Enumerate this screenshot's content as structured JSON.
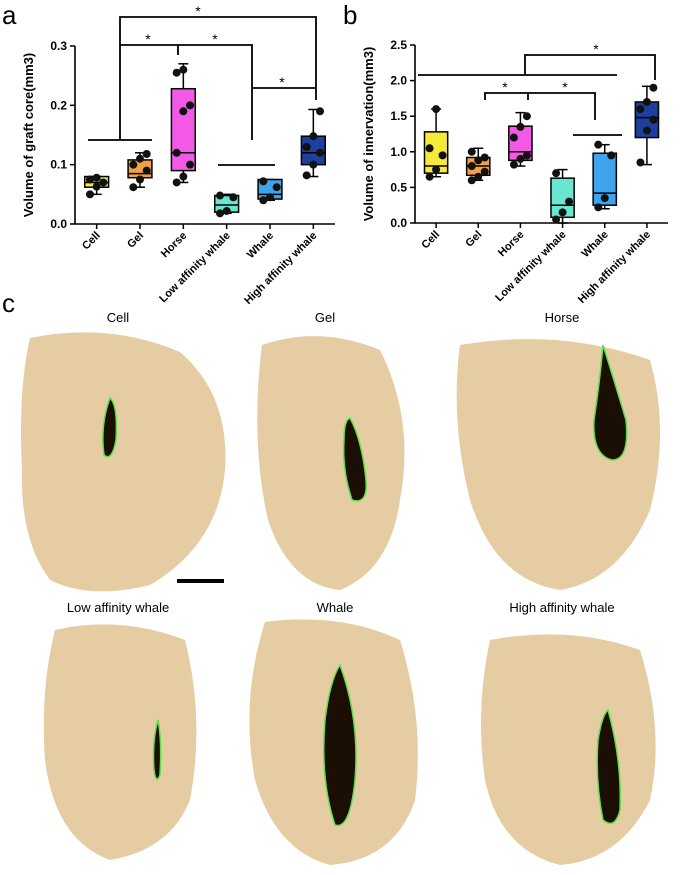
{
  "chart_data": [
    {
      "type": "box",
      "panel_label": "a",
      "y_label": "Volume of graft core(mm3)",
      "categories": [
        "Cell",
        "Gel",
        "Horse",
        "Low affinity whale",
        "Whale",
        "High affinity whale"
      ],
      "colors": [
        "#f7e93a",
        "#f5a142",
        "#f25ae6",
        "#6ae6d0",
        "#3fa3ee",
        "#1d3f9e"
      ],
      "ylim": [
        0,
        0.3
      ],
      "yticks": [
        {
          "value": 0,
          "label": "0.0"
        },
        0.1,
        0.2,
        0.3
      ],
      "boxes": [
        {
          "min": 0.05,
          "q1": 0.062,
          "median": 0.07,
          "q3": 0.08,
          "max": 0.08,
          "points": [
            0.05,
            0.063,
            0.07,
            0.075,
            0.078
          ]
        },
        {
          "min": 0.062,
          "q1": 0.078,
          "median": 0.085,
          "q3": 0.108,
          "max": 0.12,
          "points": [
            0.062,
            0.075,
            0.09,
            0.1,
            0.11,
            0.118
          ]
        },
        {
          "min": 0.07,
          "q1": 0.09,
          "median": 0.12,
          "q3": 0.228,
          "max": 0.27,
          "points": [
            0.07,
            0.08,
            0.1,
            0.12,
            0.19,
            0.2,
            0.255,
            0.26
          ]
        },
        {
          "min": 0.018,
          "q1": 0.02,
          "median": 0.032,
          "q3": 0.048,
          "max": 0.05,
          "points": [
            0.018,
            0.022,
            0.045,
            0.048
          ]
        },
        {
          "min": 0.04,
          "q1": 0.042,
          "median": 0.05,
          "q3": 0.075,
          "max": 0.075,
          "points": [
            0.04,
            0.045,
            0.062,
            0.072
          ]
        },
        {
          "min": 0.08,
          "q1": 0.1,
          "median": 0.12,
          "q3": 0.148,
          "max": 0.193,
          "points": [
            0.082,
            0.1,
            0.12,
            0.13,
            0.148,
            0.19
          ]
        }
      ],
      "annotations": [
        "*",
        "*",
        "*",
        "*"
      ]
    },
    {
      "type": "box",
      "panel_label": "b",
      "y_label": "Volume of innervation(mm3)",
      "categories": [
        "Cell",
        "Gel",
        "Horse",
        "Low affinity whale",
        "Whale",
        "High affinity whale"
      ],
      "colors": [
        "#f7e93a",
        "#f5a142",
        "#f25ae6",
        "#6ae6d0",
        "#3fa3ee",
        "#1d3f9e"
      ],
      "ylim": [
        0,
        2.5
      ],
      "yticks": [
        {
          "value": 0,
          "label": "0.0"
        },
        0.5,
        {
          "value": 1,
          "label": "1.0"
        },
        1.5,
        {
          "value": 2,
          "label": "2.0"
        },
        2.5
      ],
      "boxes": [
        {
          "min": 0.65,
          "q1": 0.7,
          "median": 0.8,
          "q3": 1.28,
          "max": 1.6,
          "points": [
            0.65,
            0.75,
            0.95,
            1.05,
            1.6
          ]
        },
        {
          "min": 0.6,
          "q1": 0.67,
          "median": 0.8,
          "q3": 0.92,
          "max": 1.05,
          "points": [
            0.6,
            0.65,
            0.72,
            0.8,
            0.88,
            0.92,
            1.0
          ]
        },
        {
          "min": 0.8,
          "q1": 0.88,
          "median": 1.0,
          "q3": 1.36,
          "max": 1.55,
          "points": [
            0.82,
            0.9,
            0.95,
            1.2,
            1.35,
            1.5
          ]
        },
        {
          "min": 0.0,
          "q1": 0.08,
          "median": 0.25,
          "q3": 0.63,
          "max": 0.75,
          "points": [
            0.05,
            0.15,
            0.3,
            0.7
          ]
        },
        {
          "min": 0.2,
          "q1": 0.25,
          "median": 0.42,
          "q3": 0.98,
          "max": 1.1,
          "points": [
            0.22,
            0.35,
            0.95,
            1.1
          ]
        },
        {
          "min": 0.82,
          "q1": 1.2,
          "median": 1.48,
          "q3": 1.7,
          "max": 1.92,
          "points": [
            0.85,
            1.3,
            1.45,
            1.6,
            1.7,
            1.9
          ]
        }
      ],
      "annotations": [
        "*",
        "*",
        "*"
      ]
    }
  ],
  "micrographs": {
    "panel_label": "c",
    "titles": [
      "Cell",
      "Gel",
      "Horse",
      "Low affinity whale",
      "Whale",
      "High affinity whale"
    ]
  }
}
